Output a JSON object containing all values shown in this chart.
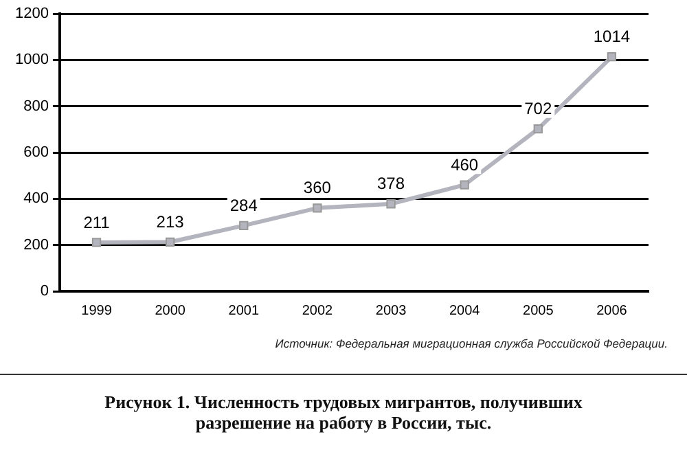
{
  "chart_data": {
    "type": "line",
    "title": "Рисунок 1. Численность трудовых мигрантов, получивших разрешение на работу в России, тыс.",
    "annotations": [
      "Источник: Федеральная миграционная служба Российской Федерации."
    ],
    "categories": [
      "1999",
      "2000",
      "2001",
      "2002",
      "2003",
      "2004",
      "2005",
      "2006"
    ],
    "series": [
      {
        "color": "#b4b4be",
        "values": [
          211,
          213,
          284,
          360,
          378,
          460,
          702,
          1014
        ]
      }
    ],
    "ylim": [
      0,
      1200
    ],
    "yticks": [
      0,
      200,
      400,
      600,
      800,
      1000,
      1200
    ],
    "grid": "y",
    "legend": false,
    "marker": "square",
    "line_style": "solid",
    "data_labels": true
  }
}
